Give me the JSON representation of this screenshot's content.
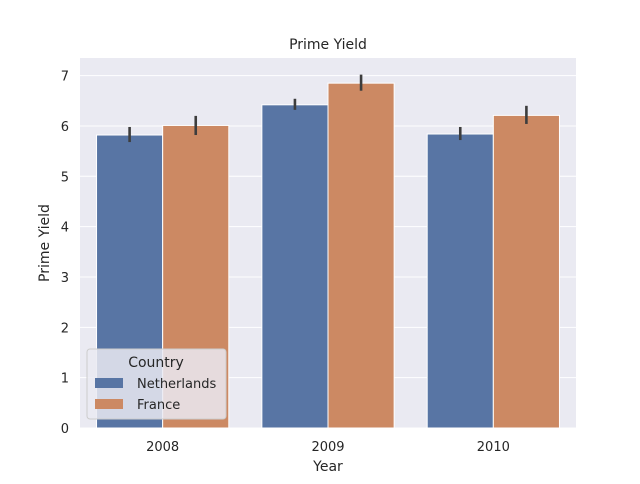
{
  "chart_data": {
    "type": "bar",
    "title": "Prime Yield",
    "xlabel": "Year",
    "ylabel": "Prime Yield",
    "categories": [
      "2008",
      "2009",
      "2010"
    ],
    "series": [
      {
        "name": "Netherlands",
        "color": "#5875a4",
        "values": [
          5.82,
          6.42,
          5.84
        ],
        "ci_low": [
          5.68,
          6.32,
          5.72
        ],
        "ci_high": [
          5.98,
          6.54,
          5.98
        ]
      },
      {
        "name": "France",
        "color": "#cc8963",
        "values": [
          6.01,
          6.85,
          6.21
        ],
        "ci_low": [
          5.82,
          6.7,
          6.04
        ],
        "ci_high": [
          6.2,
          7.02,
          6.4
        ]
      }
    ],
    "ylim": [
      0,
      7.35
    ],
    "yticks": [
      "0",
      "1",
      "2",
      "3",
      "4",
      "5",
      "6",
      "7"
    ],
    "grid": true,
    "legend": {
      "title": "Country",
      "placement": "lower-left"
    },
    "colors": {
      "axes_background": "#eaeaf2",
      "grid": "#ffffff",
      "error_bar": "#3d3d3d"
    }
  }
}
